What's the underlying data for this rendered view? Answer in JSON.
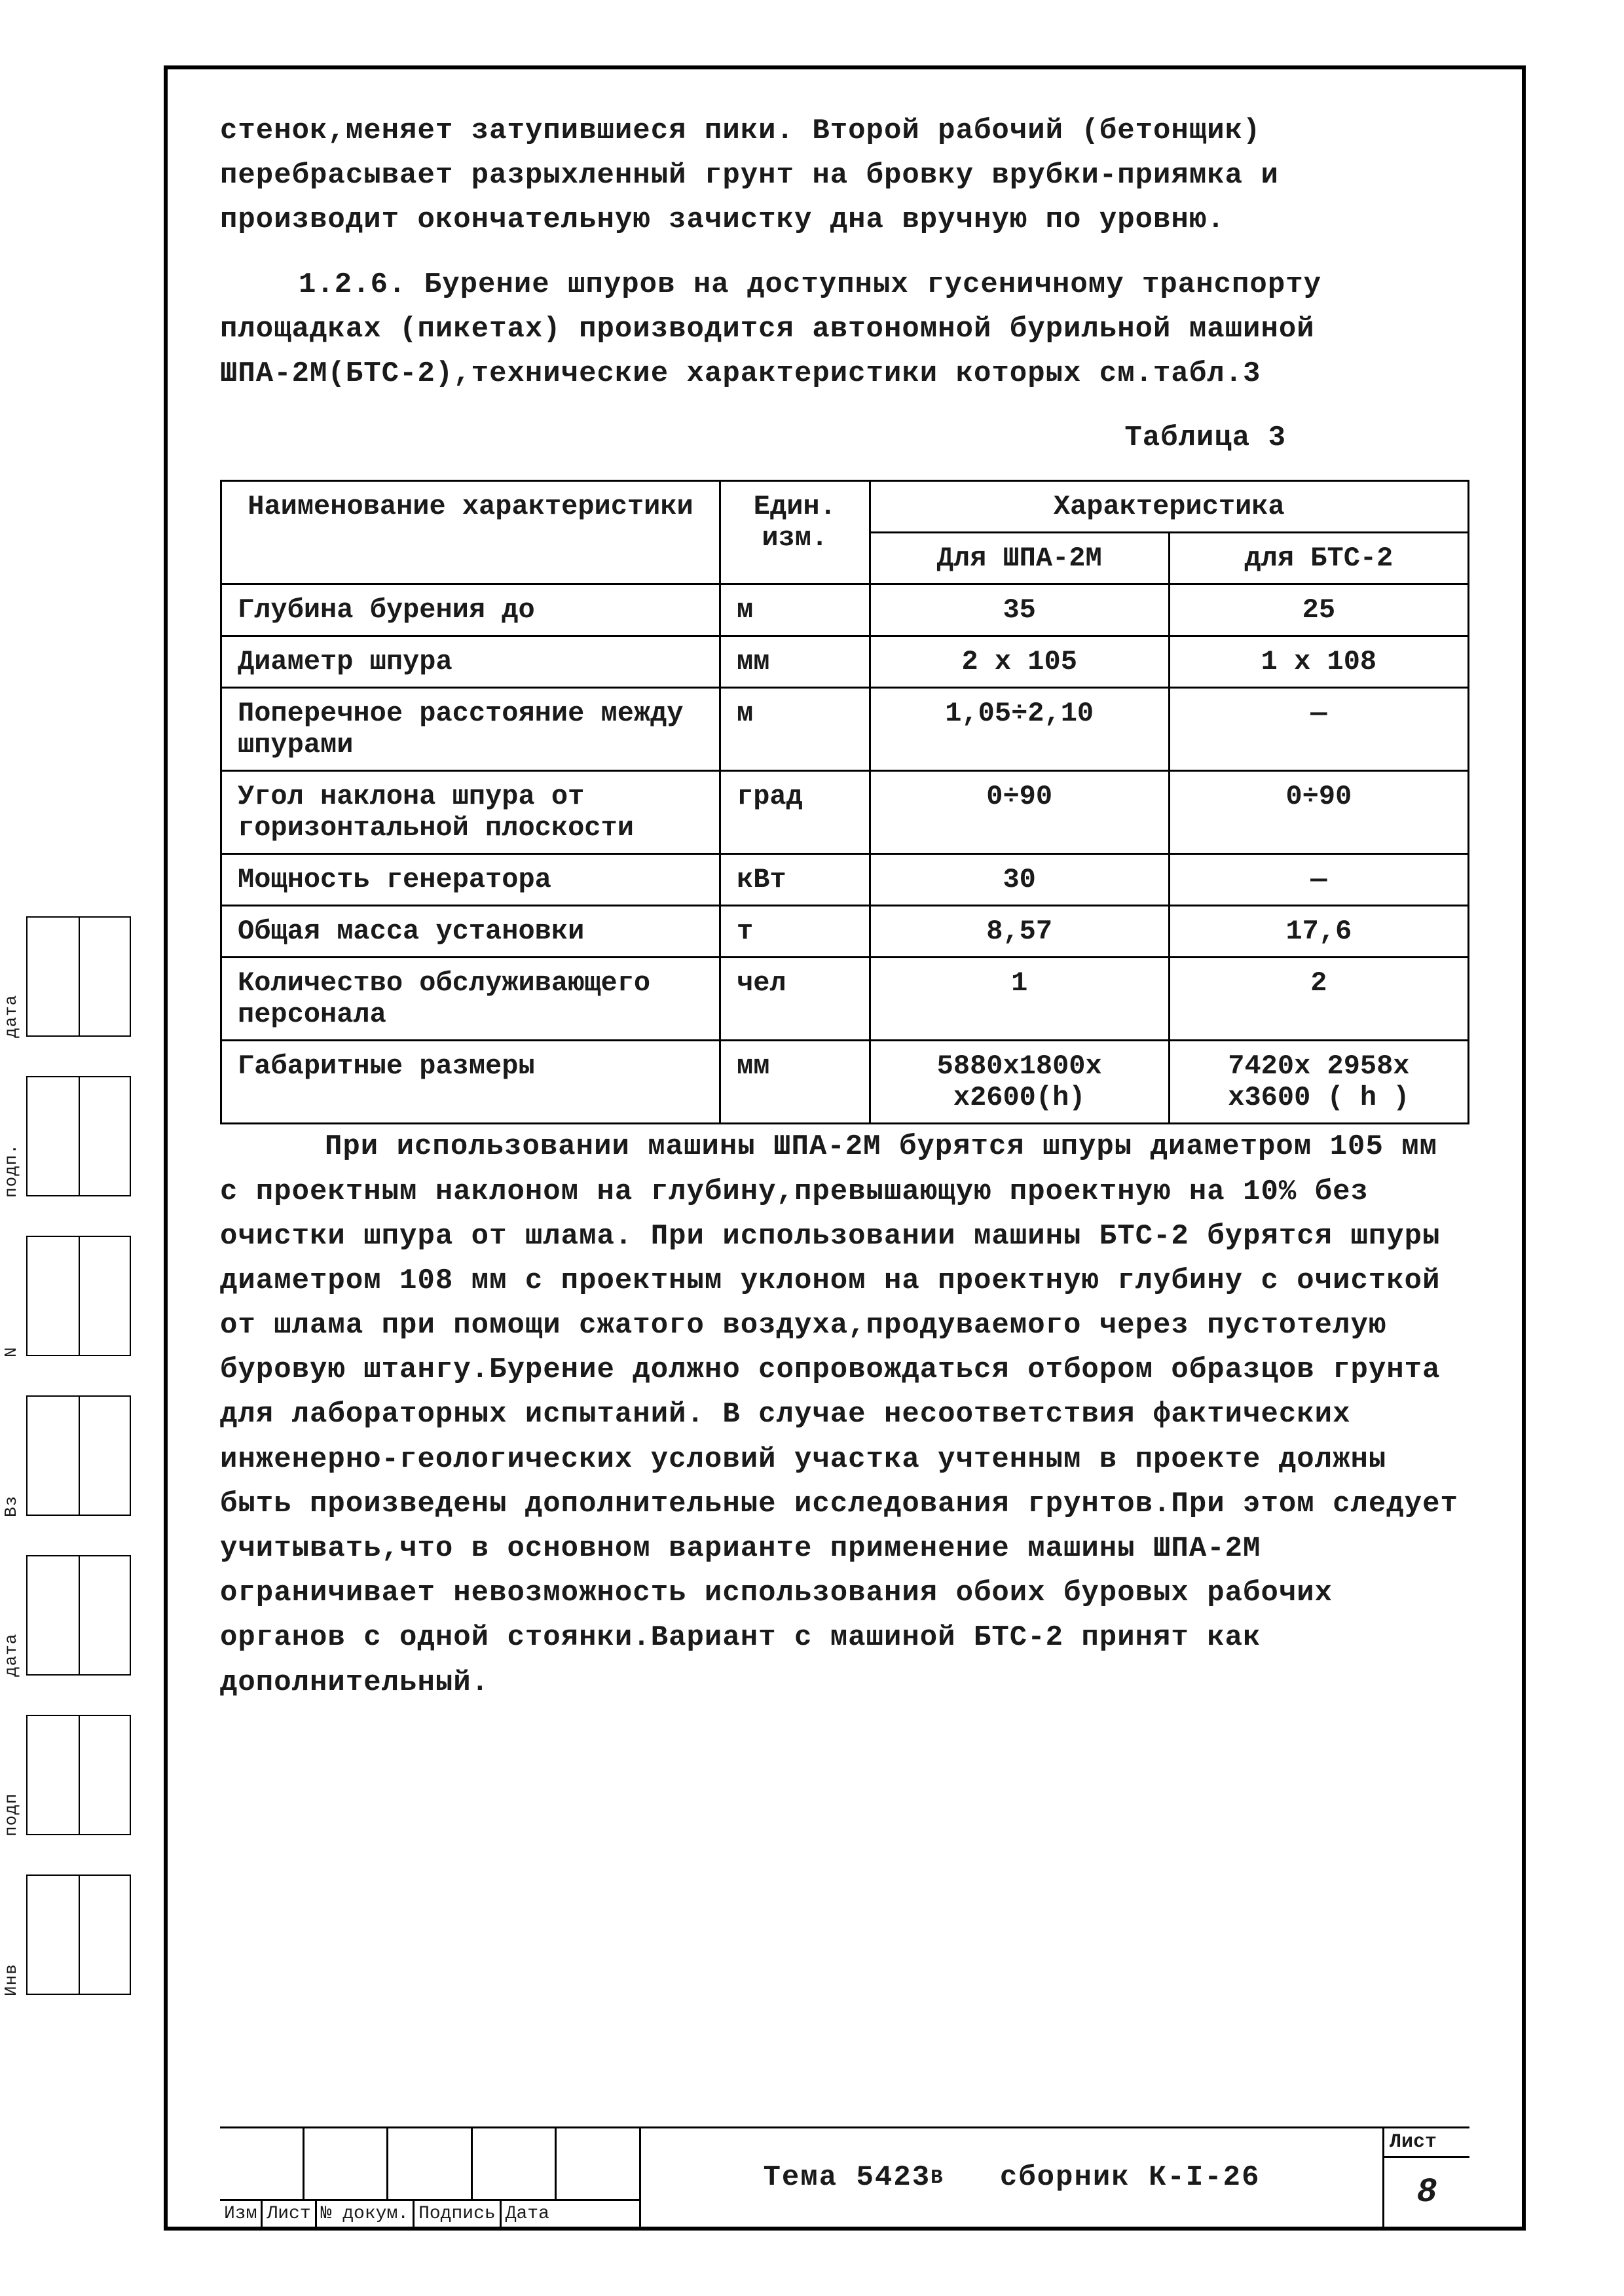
{
  "paragraph1": "стенок,меняет затупившиеся пики. Второй рабочий (бетонщик) перебрасывает разрыхленный грунт на бровку врубки-приямка и производит окончательную зачистку дна вручную по уровню.",
  "paragraph2": "1.2.6. Бурение шпуров на доступных гусеничному транспорту площадках (пикетах) производится автономной бурильной машиной ШПА-2М(БТС-2),технические характеристики которых см.табл.3",
  "table_caption": "Таблица 3",
  "table": {
    "head_name": "Наименование характеристики",
    "head_unit": "Един. изм.",
    "head_group": "Характеристика",
    "head_c1": "Для ШПА-2М",
    "head_c2": "для БТС-2",
    "rows": [
      {
        "name": "Глубина бурения до",
        "unit": "м",
        "c1": "35",
        "c2": "25"
      },
      {
        "name": "Диаметр шпура",
        "unit": "мм",
        "c1": "2 х 105",
        "c2": "1 х 108"
      },
      {
        "name": "Поперечное расстояние между шпурами",
        "unit": "м",
        "c1": "1,05÷2,10",
        "c2": "—"
      },
      {
        "name": "Угол наклона шпура от горизонтальной плоскости",
        "unit": "град",
        "c1": "0÷90",
        "c2": "0÷90"
      },
      {
        "name": "Мощность генератора",
        "unit": "кВт",
        "c1": "30",
        "c2": "—"
      },
      {
        "name": "Общая масса установки",
        "unit": "т",
        "c1": "8,57",
        "c2": "17,6"
      },
      {
        "name": "Количество обслуживающего персонала",
        "unit": "чел",
        "c1": "1",
        "c2": "2"
      },
      {
        "name": "Габаритные размеры",
        "unit": "мм",
        "c1": "5880х1800х х2600(h)",
        "c2": "7420х 2958х х3600 ( h )"
      }
    ]
  },
  "paragraph3": "При использовании машины ШПА-2М бурятся шпуры диаметром 105 мм с проектным наклоном на глубину,превышающую проектную на 10% без очистки шпура от шлама. При использовании машины БТС-2 бурятся шпуры диаметром 108 мм с проектным уклоном на проектную глубину с очисткой от шлама при помощи сжатого воздуха,продуваемого через пустотелую буровую штангу.Бурение должно сопровождаться отбором образцов грунта для лабораторных испытаний. В случае несоответствия фактических инженерно-геологических условий участка учтенным в проекте должны быть произведены дополнительные исследования грунтов.При этом следует учитывать,что в основном варианте применение машины ШПА-2М ограничивает невозможность использования обоих буровых рабочих органов с одной стоянки.Вариант с машиной БТС-2 принят как дополнительный.",
  "footer": {
    "cell_labels": [
      "Изм",
      "Лист",
      "№ докум.",
      "Подпись",
      "Дата"
    ],
    "center_a": "Тема 5423",
    "center_sup": "В",
    "center_b": "сборник К-I-26",
    "sheet_label": "Лист",
    "sheet_num": "8"
  },
  "side_labels": [
    "дата",
    "подп.",
    "N",
    "Вз",
    "дата",
    "подп",
    "Инв"
  ]
}
